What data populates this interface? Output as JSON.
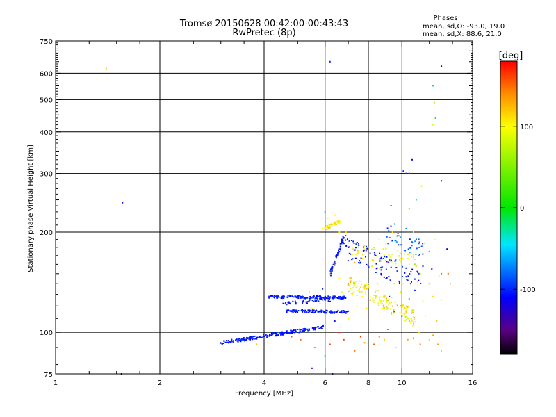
{
  "header": {
    "title_line1": "Tromsø 20150628 00:42:00-00:43:43",
    "title_line2": "RwPretec (8p)",
    "phases_title": "Phases",
    "phases_o": "mean, sd,O: -93.0, 19.0",
    "phases_x": "mean, sd,X:  88.6, 21.0"
  },
  "chart_data": {
    "type": "scatter",
    "title": "Tromsø 20150628 00:42:00-00:43:43",
    "subtitle": "RwPretec (8p)",
    "xlabel": "Frequency [MHz]",
    "ylabel": "Stationary phase Virtual Height [km]",
    "xscale": "log",
    "yscale": "log",
    "xlim": [
      1,
      16
    ],
    "ylim": [
      75,
      750
    ],
    "xticks": [
      1,
      2,
      4,
      6,
      8,
      10,
      16
    ],
    "yticks": [
      75,
      100,
      200,
      300,
      400,
      500,
      600,
      750
    ],
    "xgrid": [
      2,
      4,
      6,
      8,
      10
    ],
    "ygrid": [
      100,
      200,
      300,
      400,
      500,
      600
    ],
    "grid": true,
    "colorbar": {
      "label": "[deg]",
      "range": [
        -180,
        180
      ],
      "ticks": [
        -100,
        0,
        100
      ],
      "colormap": "rainbow"
    },
    "series": [
      {
        "points": [
          [
            1.4,
            620,
            120
          ],
          [
            1.55,
            75,
            -110
          ],
          [
            1.56,
            245,
            -110
          ],
          [
            6.2,
            650,
            -100
          ],
          [
            13.0,
            630,
            -110
          ],
          [
            12.3,
            550,
            -20
          ],
          [
            12.4,
            490,
            70
          ],
          [
            12.5,
            440,
            -20
          ],
          [
            12.3,
            420,
            90
          ],
          [
            10.7,
            330,
            -110
          ],
          [
            10.1,
            305,
            -100
          ],
          [
            10.3,
            300,
            -100
          ],
          [
            10.5,
            300,
            -80
          ],
          [
            11.4,
            275,
            110
          ],
          [
            13.0,
            285,
            -110
          ],
          [
            6.0,
            230,
            -60
          ],
          [
            6.1,
            220,
            100
          ],
          [
            6.4,
            225,
            110
          ],
          [
            6.2,
            210,
            90
          ],
          [
            6.5,
            215,
            110
          ],
          [
            5.9,
            205,
            100
          ],
          [
            6.6,
            200,
            105
          ],
          [
            6.9,
            200,
            120
          ],
          [
            6.7,
            190,
            -110
          ],
          [
            6.8,
            185,
            -100
          ],
          [
            7.0,
            180,
            -110
          ],
          [
            7.2,
            180,
            100
          ],
          [
            7.5,
            180,
            90
          ],
          [
            7.8,
            182,
            110
          ],
          [
            8.3,
            180,
            110
          ],
          [
            8.6,
            190,
            100
          ],
          [
            9.0,
            185,
            80
          ],
          [
            9.4,
            200,
            110
          ],
          [
            9.8,
            195,
            140
          ],
          [
            10.3,
            205,
            -100
          ],
          [
            10.8,
            200,
            100
          ],
          [
            11.2,
            180,
            90
          ],
          [
            11.6,
            185,
            110
          ],
          [
            12.0,
            175,
            -40
          ],
          [
            12.5,
            190,
            100
          ],
          [
            13.5,
            178,
            -110
          ],
          [
            11.0,
            250,
            -30
          ],
          [
            10.5,
            235,
            50
          ],
          [
            9.3,
            240,
            -90
          ],
          [
            8.4,
            170,
            130
          ],
          [
            8.9,
            170,
            90
          ],
          [
            9.6,
            165,
            -60
          ],
          [
            10.9,
            160,
            60
          ],
          [
            11.5,
            158,
            -100
          ],
          [
            8.2,
            158,
            110
          ],
          [
            8.6,
            155,
            100
          ],
          [
            7.3,
            162,
            140
          ],
          [
            6.4,
            160,
            120
          ],
          [
            13.0,
            150,
            150
          ],
          [
            13.6,
            150,
            150
          ],
          [
            13.8,
            140,
            120
          ],
          [
            12.8,
            148,
            100
          ],
          [
            12.2,
            155,
            -100
          ],
          [
            11.3,
            150,
            90
          ],
          [
            6.2,
            150,
            80
          ],
          [
            6.6,
            145,
            100
          ],
          [
            7.0,
            140,
            150
          ],
          [
            7.5,
            140,
            100
          ],
          [
            8.0,
            140,
            90
          ],
          [
            8.5,
            140,
            110
          ],
          [
            9.0,
            145,
            -110
          ],
          [
            9.5,
            140,
            110
          ],
          [
            10.1,
            140,
            100
          ],
          [
            10.6,
            140,
            -100
          ],
          [
            11.1,
            142,
            80
          ],
          [
            12.0,
            140,
            120
          ],
          [
            6.7,
            132,
            90
          ],
          [
            7.2,
            130,
            100
          ],
          [
            7.7,
            128,
            110
          ],
          [
            8.1,
            125,
            150
          ],
          [
            8.6,
            125,
            100
          ],
          [
            9.2,
            128,
            -100
          ],
          [
            9.9,
            132,
            80
          ],
          [
            10.5,
            126,
            -50
          ],
          [
            11.5,
            124,
            100
          ],
          [
            12.3,
            128,
            110
          ],
          [
            13.0,
            125,
            90
          ],
          [
            7.4,
            120,
            90
          ],
          [
            7.9,
            118,
            110
          ],
          [
            8.8,
            118,
            100
          ],
          [
            9.5,
            115,
            -90
          ],
          [
            10.0,
            112,
            -110
          ],
          [
            10.7,
            115,
            90
          ],
          [
            11.7,
            112,
            100
          ],
          [
            12.6,
            108,
            120
          ],
          [
            5.5,
            118,
            100
          ],
          [
            5.8,
            122,
            110
          ],
          [
            6.1,
            127,
            120
          ],
          [
            5.1,
            95,
            150
          ],
          [
            5.6,
            90,
            140
          ],
          [
            6.2,
            92,
            160
          ],
          [
            6.8,
            95,
            160
          ],
          [
            7.3,
            88,
            150
          ],
          [
            7.8,
            93,
            140
          ],
          [
            8.3,
            92,
            150
          ],
          [
            8.9,
            95,
            120
          ],
          [
            9.6,
            90,
            110
          ],
          [
            10.4,
            95,
            130
          ],
          [
            11.2,
            100,
            120
          ],
          [
            12.0,
            95,
            110
          ],
          [
            12.7,
            92,
            130
          ],
          [
            6.6,
            100,
            170
          ],
          [
            7.6,
            97,
            165
          ],
          [
            4.8,
            97,
            160
          ],
          [
            4.1,
            93,
            110
          ],
          [
            3.8,
            92,
            130
          ],
          [
            6.0,
            90,
            130
          ],
          [
            6.0,
            85,
            -20
          ],
          [
            5.5,
            78,
            -110
          ],
          [
            6.3,
            75,
            -100
          ],
          [
            10.8,
            96,
            160
          ],
          [
            11.3,
            92,
            150
          ],
          [
            8.6,
            97,
            150
          ],
          [
            9.1,
            102,
            150
          ],
          [
            6.4,
            108,
            -110
          ],
          [
            7.0,
            110,
            90
          ],
          [
            12.3,
            98,
            130
          ],
          [
            13.0,
            88,
            120
          ],
          [
            5.9,
            135,
            -100
          ],
          [
            5.4,
            132,
            110
          ]
        ]
      }
    ],
    "fit_bands": [
      {
        "f_start": 3.0,
        "f_end": 6.0,
        "h_start": 93,
        "h_end": 104,
        "n": 200,
        "jitter": 0.012,
        "hue": [
          -115,
          -95
        ]
      },
      {
        "f_start": 4.1,
        "f_end": 6.9,
        "h_start": 128,
        "h_end": 127,
        "n": 150,
        "jitter": 0.01,
        "hue": [
          -115,
          -95
        ]
      },
      {
        "f_start": 4.6,
        "f_end": 7.0,
        "h_start": 116,
        "h_end": 115,
        "n": 110,
        "jitter": 0.01,
        "hue": [
          -115,
          -95
        ]
      },
      {
        "f_start": 4.5,
        "f_end": 6.2,
        "h_start": 122,
        "h_end": 125,
        "n": 40,
        "jitter": 0.012,
        "hue": [
          -115,
          -95
        ]
      },
      {
        "f_start": 6.2,
        "f_end": 6.9,
        "h_start": 150,
        "h_end": 200,
        "n": 50,
        "jitter": 0.015,
        "hue": [
          -115,
          -95
        ]
      },
      {
        "f_start": 6.0,
        "f_end": 6.6,
        "h_start": 205,
        "h_end": 215,
        "n": 40,
        "jitter": 0.012,
        "hue": [
          95,
          125
        ]
      },
      {
        "f_start": 7.0,
        "f_end": 11.0,
        "h_start": 140,
        "h_end": 110,
        "n": 140,
        "jitter": 0.06,
        "hue": [
          70,
          130
        ]
      },
      {
        "f_start": 6.8,
        "f_end": 11.5,
        "h_start": 180,
        "h_end": 140,
        "n": 90,
        "jitter": 0.08,
        "hue": [
          -120,
          -90
        ]
      },
      {
        "f_start": 7.2,
        "f_end": 11.0,
        "h_start": 175,
        "h_end": 165,
        "n": 50,
        "jitter": 0.05,
        "hue": [
          90,
          120
        ]
      },
      {
        "f_start": 9.0,
        "f_end": 11.5,
        "h_start": 200,
        "h_end": 180,
        "n": 40,
        "jitter": 0.08,
        "hue": [
          -110,
          -60
        ]
      }
    ]
  }
}
